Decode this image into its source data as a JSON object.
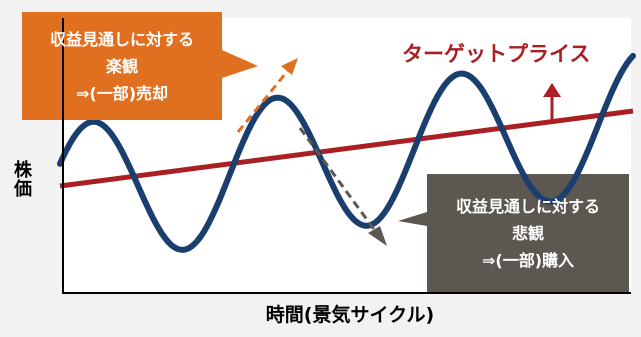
{
  "colors": {
    "background": "#f2f2f2",
    "plot_area": "#ffffff",
    "price_wave": "#1a3f6f",
    "target_price": "#a91f24",
    "optimistic_callout": "#e07020",
    "pessimistic_callout": "#5c5751",
    "pessimistic_arrow": "#5c5751",
    "axis": "#000000"
  },
  "target_price_label": "ターゲットプライス",
  "axes": {
    "y_label": "株価",
    "x_label": "時間(景気サイクル)"
  },
  "optimistic_callout": {
    "lines": [
      "収益見通しに対する",
      "楽観",
      "⇒(一部)売却"
    ]
  },
  "pessimistic_callout": {
    "lines": [
      "収益見通しに対する",
      "悲観",
      "⇒(一部)購入"
    ]
  },
  "icons": {
    "target_arrow": "arrow-up-icon",
    "optimistic_arrow": "dashed-arrow-up-right-icon",
    "pessimistic_arrow": "dashed-arrow-down-right-icon"
  }
}
